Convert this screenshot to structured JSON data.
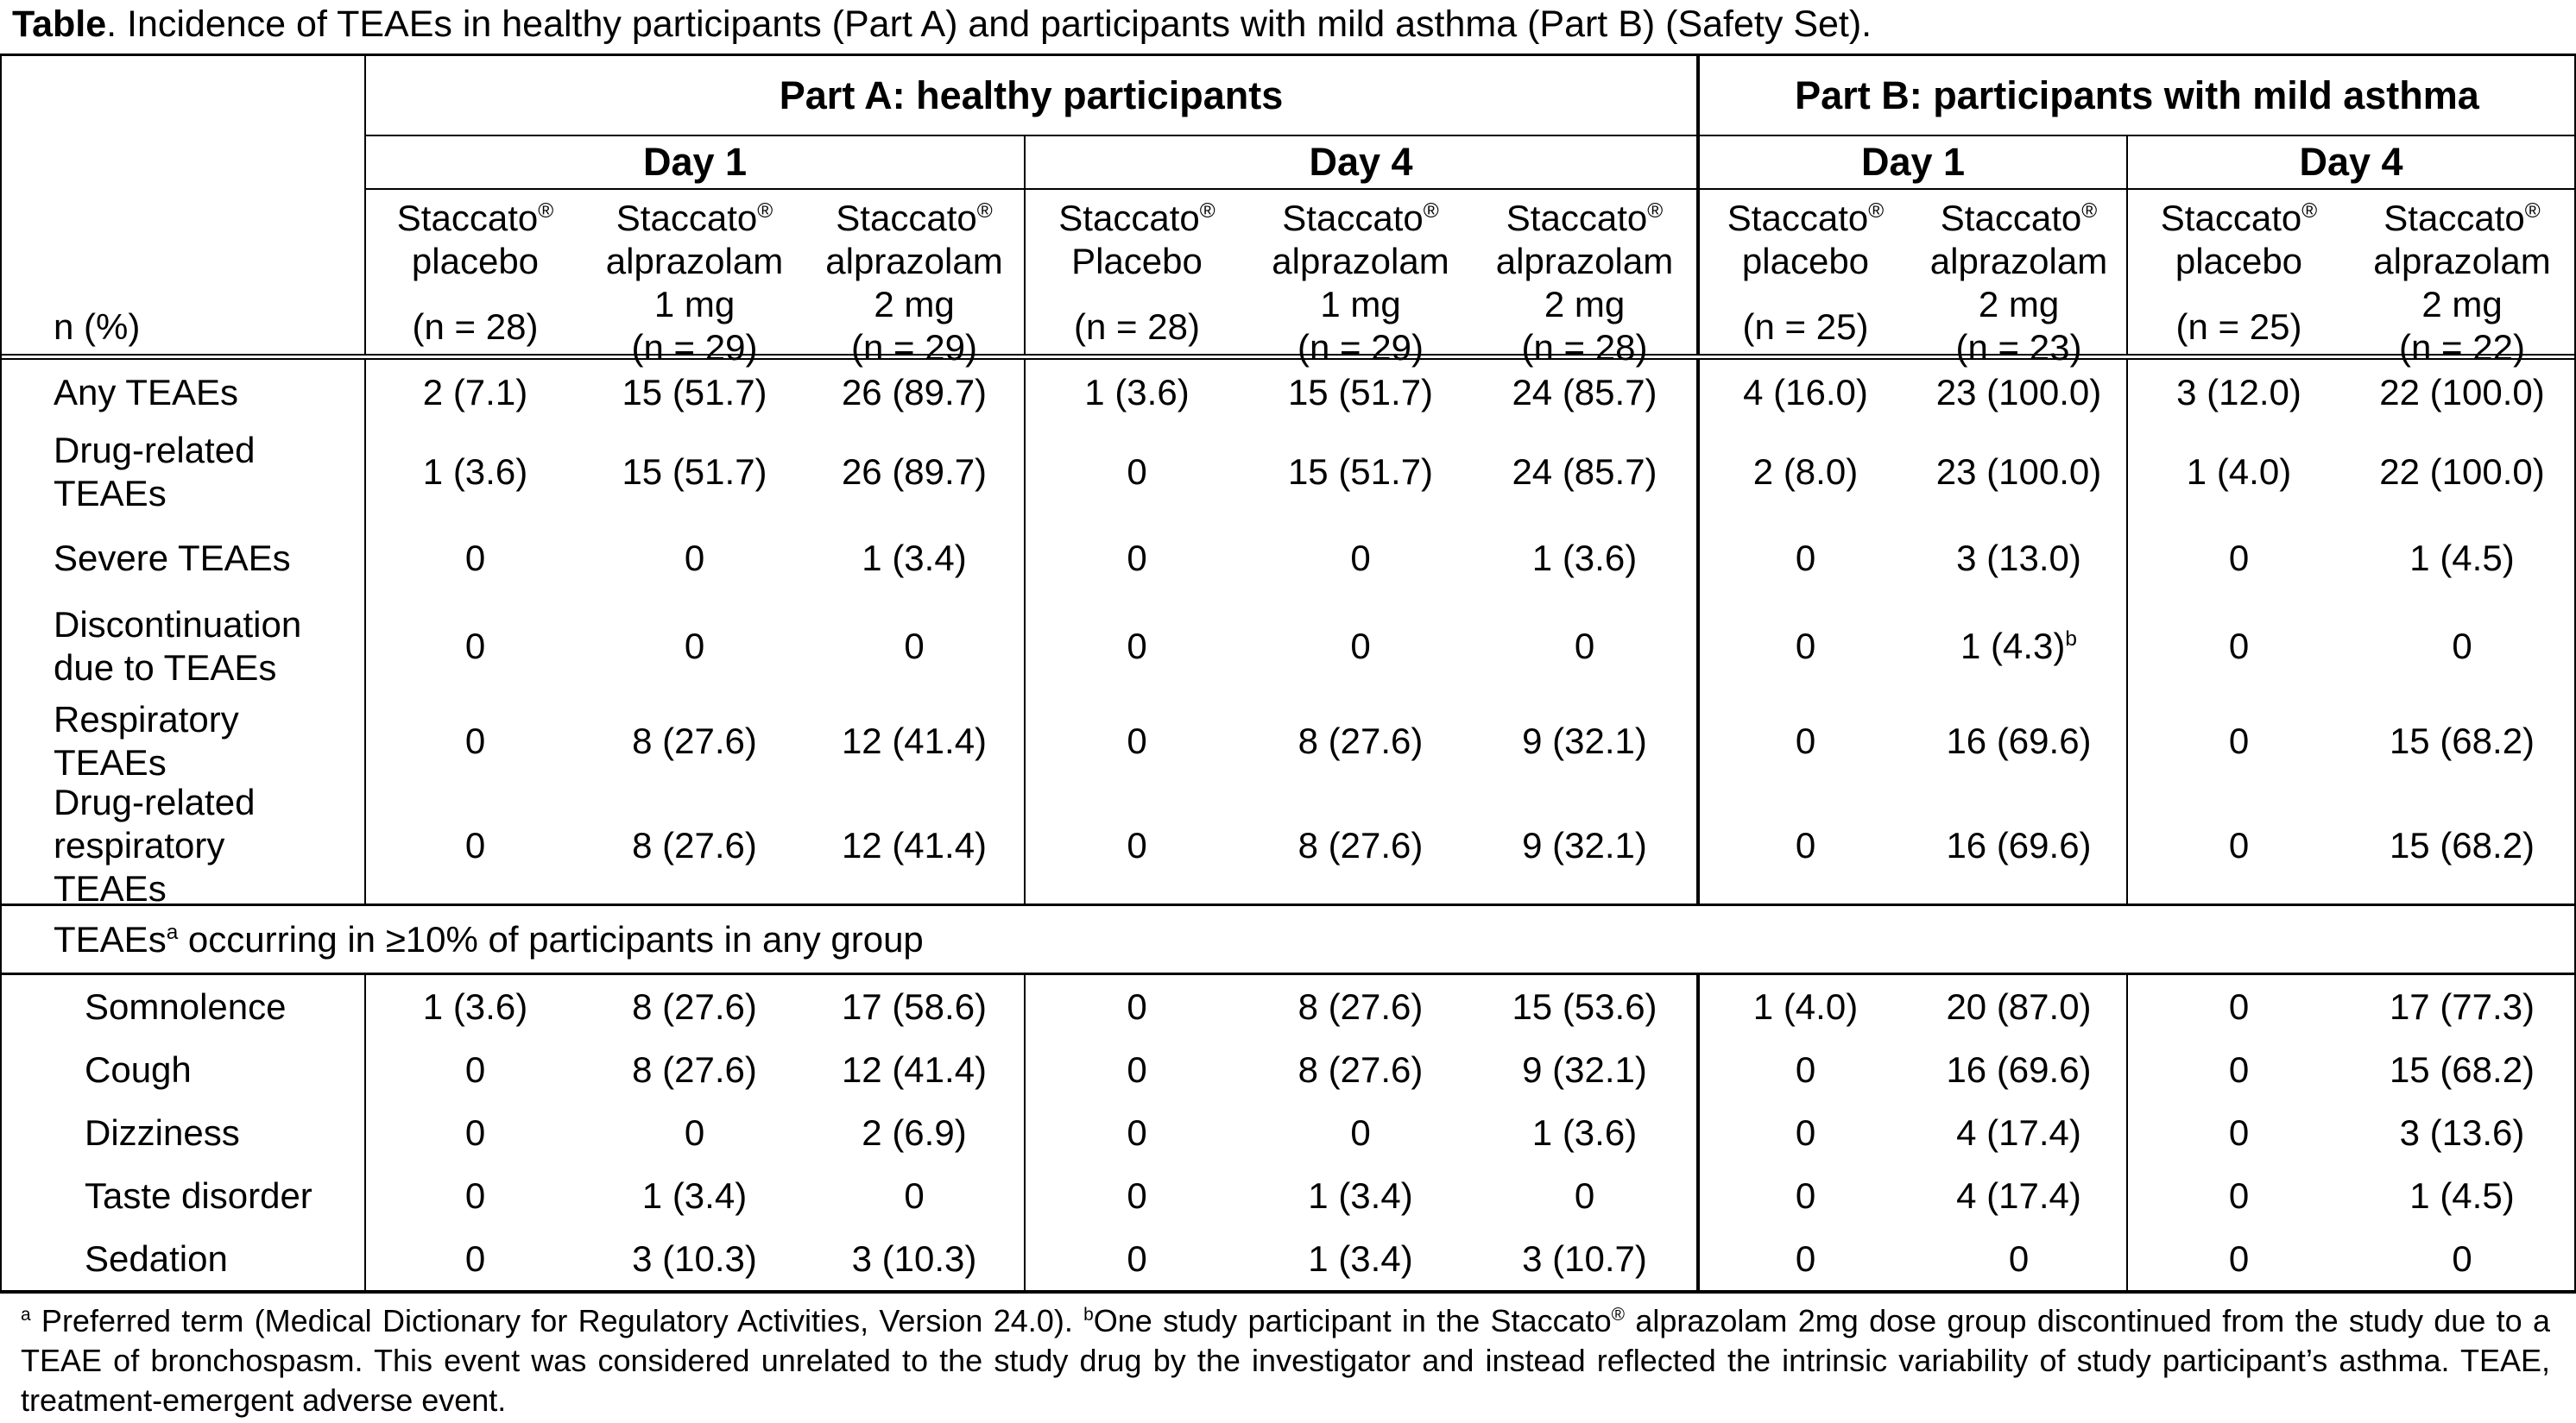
{
  "title": {
    "label": "Table",
    "rest": ". Incidence of TEAEs in healthy participants (Part A) and participants with mild asthma (Part B) (Safety Set)."
  },
  "table": {
    "row_label_header": "n (%)",
    "part_groups": [
      {
        "label": "Part A: healthy participants",
        "span": 6
      },
      {
        "label": "Part B: participants with mild asthma",
        "span": 4
      }
    ],
    "day_groups": [
      {
        "label": "Day 1",
        "span": 3
      },
      {
        "label": "Day 4",
        "span": 3
      },
      {
        "label": "Day 1",
        "span": 2
      },
      {
        "label": "Day 4",
        "span": 2
      }
    ],
    "columns": [
      {
        "lines": [
          "Staccato®",
          "placebo"
        ],
        "n_label": "(n = 28)"
      },
      {
        "lines": [
          "Staccato®",
          "alprazolam",
          "1 mg"
        ],
        "n_label": "(n = 29)"
      },
      {
        "lines": [
          "Staccato®",
          "alprazolam",
          "2 mg"
        ],
        "n_label": "(n = 29)"
      },
      {
        "lines": [
          "Staccato®",
          "Placebo"
        ],
        "n_label": "(n = 28)"
      },
      {
        "lines": [
          "Staccato®",
          "alprazolam",
          "1 mg"
        ],
        "n_label": "(n = 29)"
      },
      {
        "lines": [
          "Staccato®",
          "alprazolam",
          "2 mg"
        ],
        "n_label": "(n = 28)"
      },
      {
        "lines": [
          "Staccato®",
          "placebo"
        ],
        "n_label": "(n = 25)"
      },
      {
        "lines": [
          "Staccato®",
          "alprazolam",
          "2 mg"
        ],
        "n_label": "(n = 23)"
      },
      {
        "lines": [
          "Staccato®",
          "placebo"
        ],
        "n_label": "(n = 25)"
      },
      {
        "lines": [
          "Staccato®",
          "alprazolam",
          "2 mg"
        ],
        "n_label": "(n = 22)"
      }
    ],
    "sections": [
      {
        "header": null,
        "rows": [
          {
            "label": "Any TEAEs",
            "values": [
              "2 (7.1)",
              "15 (51.7)",
              "26 (89.7)",
              "1 (3.6)",
              "15 (51.7)",
              "24 (85.7)",
              "4 (16.0)",
              "23 (100.0)",
              "3 (12.0)",
              "22 (100.0)"
            ]
          },
          {
            "label": "Drug-related\nTEAEs",
            "values": [
              "1 (3.6)",
              "15 (51.7)",
              "26 (89.7)",
              "0",
              "15 (51.7)",
              "24 (85.7)",
              "2 (8.0)",
              "23 (100.0)",
              "1 (4.0)",
              "22 (100.0)"
            ]
          },
          {
            "label": "Severe TEAEs",
            "values": [
              "0",
              "0",
              "1 (3.4)",
              "0",
              "0",
              "1 (3.6)",
              "0",
              "3 (13.0)",
              "0",
              "1 (4.5)"
            ]
          },
          {
            "label": "Discontinuation\ndue to TEAEs",
            "values": [
              "0",
              "0",
              "0",
              "0",
              "0",
              "0",
              "0",
              {
                "text": "1 (4.3)",
                "sup": "b"
              },
              "0",
              "0"
            ]
          },
          {
            "label": "Respiratory\nTEAEs",
            "values": [
              "0",
              "8 (27.6)",
              "12 (41.4)",
              "0",
              "8 (27.6)",
              "9 (32.1)",
              "0",
              "16 (69.6)",
              "0",
              "15 (68.2)"
            ]
          },
          {
            "label": "Drug-related\nrespiratory\nTEAEs",
            "values": [
              "0",
              "8 (27.6)",
              "12 (41.4)",
              "0",
              "8 (27.6)",
              "9 (32.1)",
              "0",
              "16 (69.6)",
              "0",
              "15 (68.2)"
            ]
          }
        ]
      },
      {
        "header": {
          "prefix": "TEAEs",
          "sup": "a",
          "suffix": " occurring in ≥10% of participants in any group"
        },
        "rows": [
          {
            "label": "Somnolence",
            "values": [
              "1 (3.6)",
              "8 (27.6)",
              "17 (58.6)",
              "0",
              "8 (27.6)",
              "15 (53.6)",
              "1 (4.0)",
              "20 (87.0)",
              "0",
              "17 (77.3)"
            ]
          },
          {
            "label": "Cough",
            "values": [
              "0",
              "8 (27.6)",
              "12 (41.4)",
              "0",
              "8 (27.6)",
              "9 (32.1)",
              "0",
              "16 (69.6)",
              "0",
              "15 (68.2)"
            ]
          },
          {
            "label": "Dizziness",
            "values": [
              "0",
              "0",
              "2 (6.9)",
              "0",
              "0",
              "1 (3.6)",
              "0",
              "4 (17.4)",
              "0",
              "3 (13.6)"
            ]
          },
          {
            "label": "Taste disorder",
            "values": [
              "0",
              "1 (3.4)",
              "0",
              "0",
              "1 (3.4)",
              "0",
              "0",
              "4 (17.4)",
              "0",
              "1 (4.5)"
            ]
          },
          {
            "label": "Sedation",
            "values": [
              "0",
              "3 (10.3)",
              "3 (10.3)",
              "0",
              "1 (3.4)",
              "3 (10.7)",
              "0",
              "0",
              "0",
              "0"
            ]
          }
        ]
      }
    ]
  },
  "footnote": {
    "parts": [
      {
        "sup": "a"
      },
      {
        "text": " Preferred term (Medical Dictionary for Regulatory Activities, Version 24.0). "
      },
      {
        "sup": "b"
      },
      {
        "text": "One study participant in the Staccato"
      },
      {
        "sup": "®"
      },
      {
        "text": " alprazolam 2mg dose group discontinued from the study due to a TEAE of bronchospasm. This event was considered unrelated to the study drug by the investigator and instead reflected the intrinsic variability of study participant’s asthma. TEAE, treatment-emergent adverse event."
      }
    ]
  }
}
